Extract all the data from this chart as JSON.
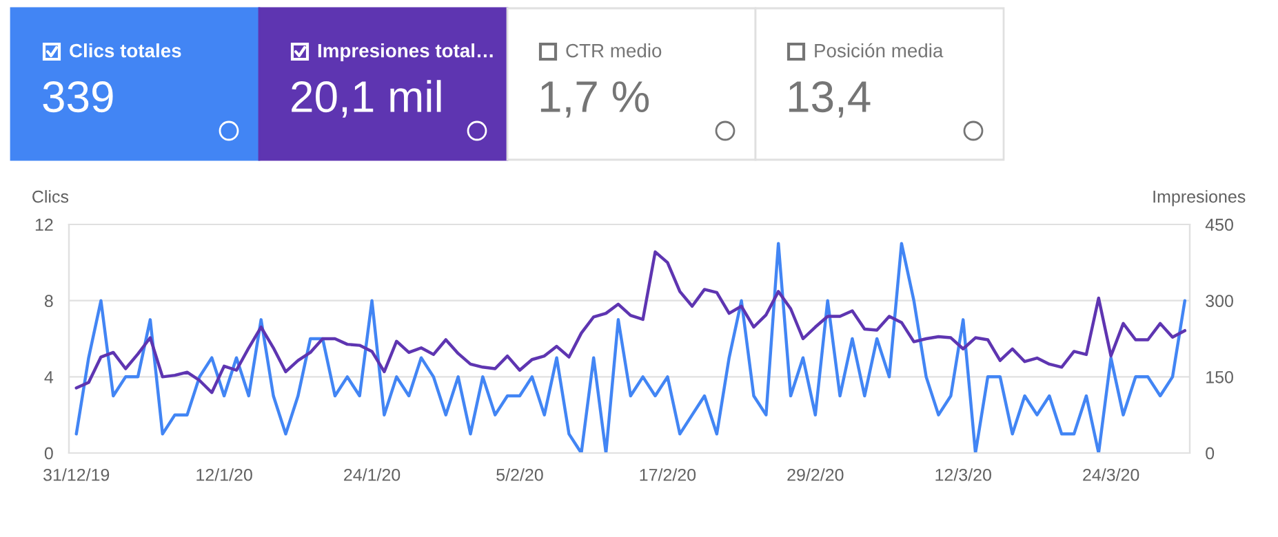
{
  "chart_data": [
    {
      "type": "other",
      "annotations": [
        "Clics totales",
        "339",
        "Impresiones total…",
        "20,1 mil",
        "CTR medio",
        "1,7 %",
        "Posición media",
        "13,4"
      ]
    },
    {
      "type": "line",
      "ylabel": "Clics",
      "y2label": "Impresiones",
      "categories": [
        "31/12/19",
        null,
        null,
        null,
        null,
        null,
        null,
        null,
        null,
        null,
        null,
        null,
        "12/1/20",
        null,
        null,
        null,
        null,
        null,
        null,
        null,
        null,
        null,
        null,
        null,
        "24/1/20",
        null,
        null,
        null,
        null,
        null,
        null,
        null,
        null,
        null,
        null,
        null,
        "5/2/20",
        null,
        null,
        null,
        null,
        null,
        null,
        null,
        null,
        null,
        null,
        null,
        "17/2/20",
        null,
        null,
        null,
        null,
        null,
        null,
        null,
        null,
        null,
        null,
        null,
        "29/2/20",
        null,
        null,
        null,
        null,
        null,
        null,
        null,
        null,
        null,
        null,
        null,
        "12/3/20",
        null,
        null,
        null,
        null,
        null,
        null,
        null,
        null,
        null,
        null,
        null,
        "24/3/20",
        null,
        null,
        null,
        null,
        null,
        null
      ],
      "series": [
        {
          "color": "#4285f4",
          "values": [
            1,
            5,
            8,
            3,
            4,
            4,
            7,
            1,
            2,
            2,
            4,
            5,
            3,
            5,
            3,
            7,
            3,
            1,
            3,
            6,
            6,
            3,
            4,
            3,
            8,
            2,
            4,
            3,
            5,
            4,
            2,
            4,
            1,
            4,
            2,
            3,
            3,
            4,
            2,
            5,
            1,
            0,
            5,
            0,
            7,
            3,
            4,
            3,
            4,
            1,
            2,
            3,
            1,
            5,
            8,
            3,
            2,
            11,
            3,
            5,
            2,
            8,
            3,
            6,
            3,
            6,
            4,
            11,
            8,
            4,
            2,
            3,
            7,
            0,
            4,
            4,
            1,
            3,
            2,
            3,
            1,
            1,
            3,
            0,
            5,
            2,
            4,
            4,
            3,
            4,
            8
          ]
        },
        {
          "color": "#5e35b1",
          "axis": "y2",
          "values": [
            128,
            139,
            189,
            198,
            166,
            195,
            227,
            150,
            153,
            159,
            143,
            119,
            171,
            163,
            207,
            248,
            207,
            160,
            182,
            198,
            225,
            225,
            214,
            212,
            200,
            160,
            220,
            198,
            207,
            194,
            223,
            196,
            175,
            169,
            166,
            191,
            163,
            184,
            191,
            210,
            189,
            236,
            268,
            275,
            293,
            271,
            263,
            396,
            375,
            318,
            289,
            322,
            316,
            275,
            289,
            248,
            272,
            318,
            284,
            225,
            248,
            269,
            269,
            280,
            244,
            242,
            269,
            257,
            219,
            225,
            229,
            227,
            205,
            227,
            223,
            182,
            205,
            180,
            187,
            175,
            169,
            200,
            194,
            305,
            191,
            255,
            223,
            223,
            255,
            228,
            241
          ]
        }
      ],
      "ylim": [
        0,
        12
      ],
      "yticks": [
        0,
        4,
        8,
        12
      ],
      "y2lim": [
        0,
        450
      ],
      "y2ticks": [
        0,
        150,
        300,
        450
      ],
      "grid": "y",
      "marker": "none",
      "line_style": "solid"
    }
  ]
}
